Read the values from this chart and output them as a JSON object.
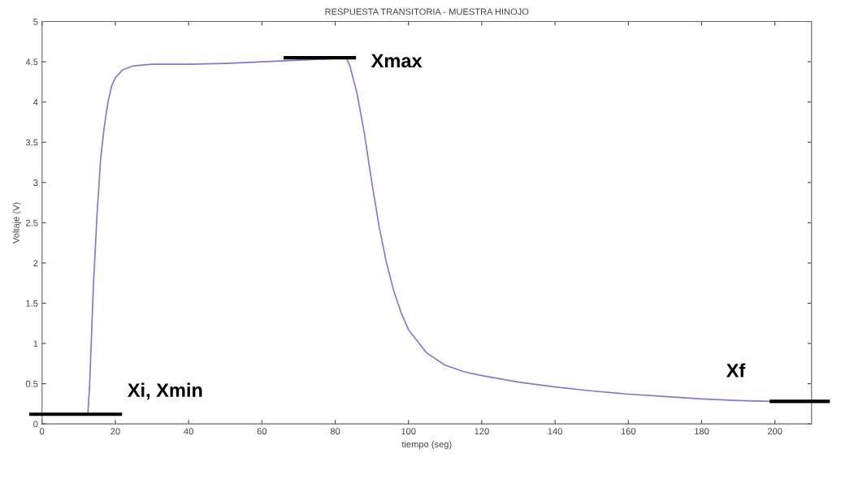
{
  "chart_data": {
    "type": "line",
    "title": "RESPUESTA TRANSITORIA - MUESTRA HINOJO",
    "xlabel": "tiempo (seg)",
    "ylabel": "Voltaje (V)",
    "x": [
      0,
      12.5,
      13,
      14,
      15,
      16,
      17,
      18,
      19,
      20,
      22,
      25,
      30,
      40,
      50,
      60,
      70,
      80,
      83,
      84,
      86,
      88,
      90,
      92,
      94,
      96,
      98,
      100,
      105,
      110,
      115,
      120,
      130,
      140,
      150,
      160,
      170,
      180,
      190,
      199
    ],
    "series": [
      {
        "color": "#7b7bd6",
        "values": [
          0.12,
          0.12,
          0.5,
          1.7,
          2.6,
          3.3,
          3.7,
          4.0,
          4.2,
          4.3,
          4.4,
          4.45,
          4.47,
          4.47,
          4.48,
          4.5,
          4.52,
          4.54,
          4.55,
          4.45,
          4.1,
          3.6,
          3.0,
          2.45,
          2.0,
          1.65,
          1.38,
          1.17,
          0.88,
          0.73,
          0.65,
          0.6,
          0.52,
          0.46,
          0.41,
          0.37,
          0.34,
          0.31,
          0.29,
          0.28
        ]
      }
    ],
    "annotations": [
      {
        "text": "Xi, Xmin",
        "x": 12.5,
        "y": 0.12
      },
      {
        "text": "Xmax",
        "x": 83,
        "y": 4.55
      },
      {
        "text": "Xf",
        "x": 199,
        "y": 0.28
      }
    ],
    "xlim": [
      0,
      210
    ],
    "ylim": [
      0,
      5
    ],
    "xticks": [
      0,
      20,
      40,
      60,
      80,
      100,
      120,
      140,
      160,
      180,
      200
    ],
    "yticks": [
      0,
      0.5,
      1,
      1.5,
      2,
      2.5,
      3,
      3.5,
      4,
      4.5,
      5
    ],
    "grid": false,
    "legend": false,
    "line_style": "solid",
    "marker": "none"
  }
}
